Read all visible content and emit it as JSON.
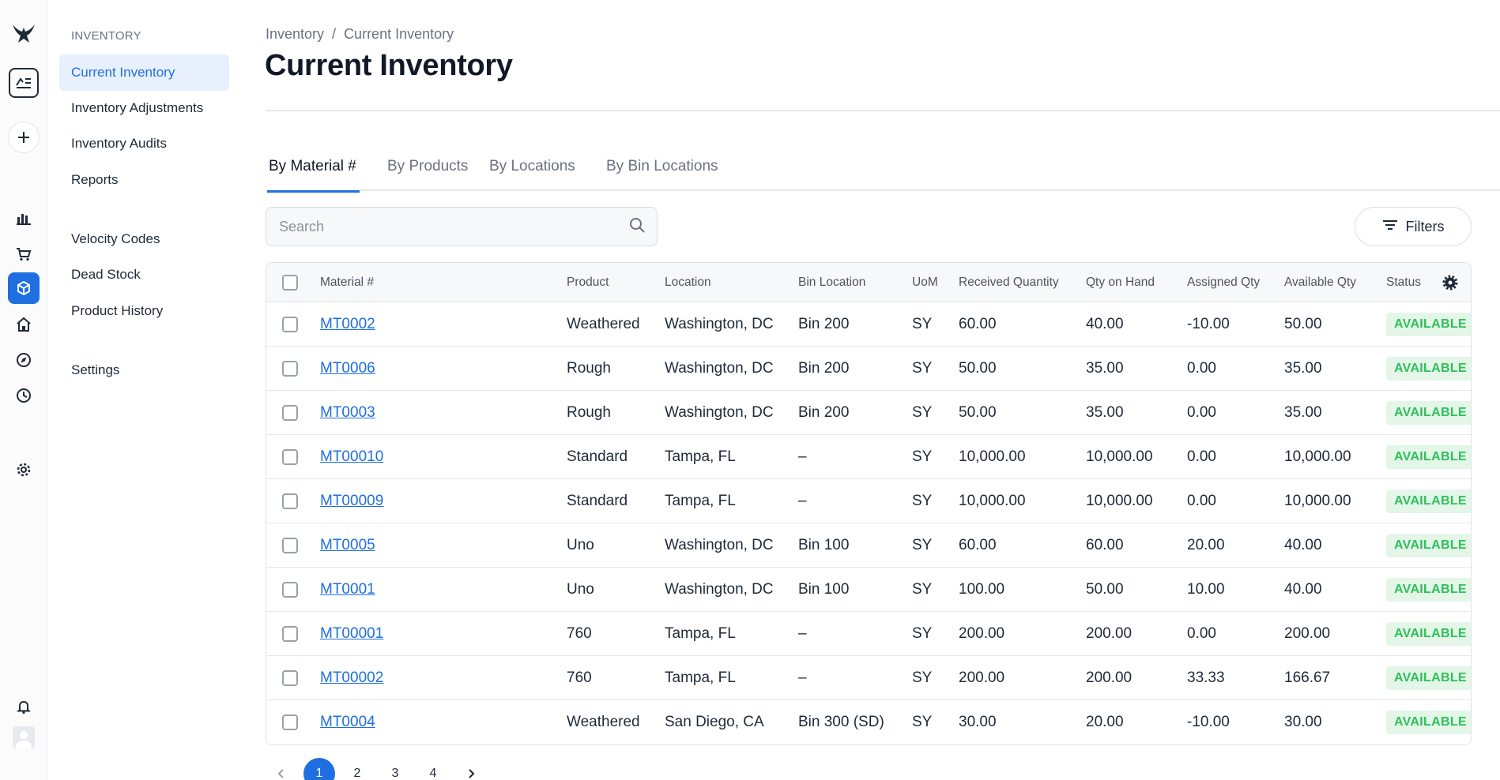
{
  "sidebar": {
    "heading": "INVENTORY",
    "items": [
      {
        "label": "Current Inventory",
        "active": true
      },
      {
        "label": "Inventory Adjustments"
      },
      {
        "label": "Inventory Audits"
      },
      {
        "label": "Reports"
      },
      {
        "label": "Velocity Codes"
      },
      {
        "label": "Dead Stock"
      },
      {
        "label": "Product History"
      },
      {
        "label": "Settings"
      }
    ]
  },
  "rail_icons": [
    "logo-icon",
    "board-icon",
    "plus-icon",
    "chart-icon",
    "cart-icon",
    "box-icon",
    "home-icon",
    "compass-icon",
    "clock-icon",
    "gear-icon",
    "bell-icon",
    "user-icon"
  ],
  "breadcrumb": {
    "root": "Inventory",
    "separator": "/",
    "current": "Current Inventory"
  },
  "page": {
    "title": "Current Inventory"
  },
  "tabs": [
    {
      "label": "By Material #",
      "active": true
    },
    {
      "label": "By Products"
    },
    {
      "label": "By Locations"
    },
    {
      "label": "By Bin Locations"
    }
  ],
  "search": {
    "placeholder": "Search",
    "value": ""
  },
  "filters": {
    "label": "Filters"
  },
  "table": {
    "columns": [
      "Material #",
      "Product",
      "Location",
      "Bin Location",
      "UoM",
      "Received Quantity",
      "Qty on Hand",
      "Assigned Qty",
      "Available Qty",
      "Status"
    ],
    "rows": [
      {
        "material": "MT0002",
        "product": "Weathered",
        "location": "Washington, DC",
        "bin": "Bin 200",
        "uom": "SY",
        "received": "60.00",
        "on_hand": "40.00",
        "assigned": "-10.00",
        "available": "50.00",
        "status": "AVAILABLE"
      },
      {
        "material": "MT0006",
        "product": "Rough",
        "location": "Washington, DC",
        "bin": "Bin 200",
        "uom": "SY",
        "received": "50.00",
        "on_hand": "35.00",
        "assigned": "0.00",
        "available": "35.00",
        "status": "AVAILABLE"
      },
      {
        "material": "MT0003",
        "product": "Rough",
        "location": "Washington, DC",
        "bin": "Bin 200",
        "uom": "SY",
        "received": "50.00",
        "on_hand": "35.00",
        "assigned": "0.00",
        "available": "35.00",
        "status": "AVAILABLE"
      },
      {
        "material": "MT00010",
        "product": "Standard",
        "location": "Tampa, FL",
        "bin": "–",
        "uom": "SY",
        "received": "10,000.00",
        "on_hand": "10,000.00",
        "assigned": "0.00",
        "available": "10,000.00",
        "status": "AVAILABLE"
      },
      {
        "material": "MT00009",
        "product": "Standard",
        "location": "Tampa, FL",
        "bin": "–",
        "uom": "SY",
        "received": "10,000.00",
        "on_hand": "10,000.00",
        "assigned": "0.00",
        "available": "10,000.00",
        "status": "AVAILABLE"
      },
      {
        "material": "MT0005",
        "product": "Uno",
        "location": "Washington, DC",
        "bin": "Bin 100",
        "uom": "SY",
        "received": "60.00",
        "on_hand": "60.00",
        "assigned": "20.00",
        "available": "40.00",
        "status": "AVAILABLE"
      },
      {
        "material": "MT0001",
        "product": "Uno",
        "location": "Washington, DC",
        "bin": "Bin 100",
        "uom": "SY",
        "received": "100.00",
        "on_hand": "50.00",
        "assigned": "10.00",
        "available": "40.00",
        "status": "AVAILABLE"
      },
      {
        "material": "MT00001",
        "product": "760",
        "location": "Tampa, FL",
        "bin": "–",
        "uom": "SY",
        "received": "200.00",
        "on_hand": "200.00",
        "assigned": "0.00",
        "available": "200.00",
        "status": "AVAILABLE"
      },
      {
        "material": "MT00002",
        "product": "760",
        "location": "Tampa, FL",
        "bin": "–",
        "uom": "SY",
        "received": "200.00",
        "on_hand": "200.00",
        "assigned": "33.33",
        "available": "166.67",
        "status": "AVAILABLE"
      },
      {
        "material": "MT0004",
        "product": "Weathered",
        "location": "San Diego, CA",
        "bin": "Bin 300 (SD)",
        "uom": "SY",
        "received": "30.00",
        "on_hand": "20.00",
        "assigned": "-10.00",
        "available": "30.00",
        "status": "AVAILABLE"
      }
    ]
  },
  "pagination": {
    "pages": [
      "1",
      "2",
      "3",
      "4"
    ],
    "current": "1"
  },
  "colors": {
    "accent": "#1f6fe0",
    "status_bg": "#e3f6e8",
    "status_text": "#2fbf5b",
    "active_nav_bg": "#e8f0fd"
  }
}
